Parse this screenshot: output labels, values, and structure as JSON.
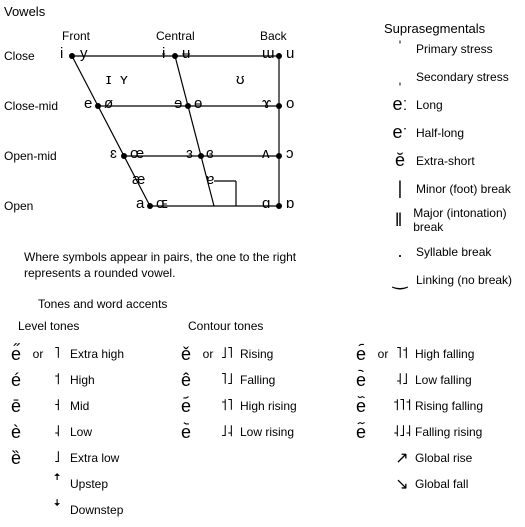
{
  "headings": {
    "vowels": "Vowels",
    "supra": "Suprasegmentals",
    "tones": "Tones and word accents",
    "level": "Level tones",
    "contour": "Contour tones"
  },
  "vowel_axis_cols": {
    "front": "Front",
    "central": "Central",
    "back": "Back"
  },
  "vowel_axis_rows": {
    "close": "Close",
    "closemid": "Close-mid",
    "openmid": "Open-mid",
    "open": "Open"
  },
  "caption1": "Where symbols appear in pairs, the one to the right",
  "caption2": "represents a rounded vowel.",
  "vowels": {
    "i": "i",
    "y": "y",
    "ibar": "ɨ",
    "ubar": "ʉ",
    "mtur": "ɯ",
    "u": "u",
    "smI": "ɪ",
    "smY": "ʏ",
    "smU": "ʊ",
    "e": "e",
    "oslash": "ø",
    "ebar": "ɘ",
    "obar": "ɵ",
    "ram": "ɤ",
    "o": "o",
    "eps": "ɛ",
    "oe": "œ",
    "revE": "ɜ",
    "ceps": "ɞ",
    "vturn": "ʌ",
    "oopen": "ɔ",
    "ae": "æ",
    "aturn": "ɐ",
    "a": "a",
    "OE": "ɶ",
    "alpha": "ɑ",
    "alphar": "ɒ"
  },
  "supra_items": [
    {
      "sym": "ˈ",
      "desc": "Primary stress"
    },
    {
      "sym": "ˌ",
      "desc": "Secondary stress"
    },
    {
      "sym": "eː",
      "desc": "Long"
    },
    {
      "sym": "eˑ",
      "desc": "Half-long"
    },
    {
      "sym": "ĕ",
      "desc": "Extra-short"
    },
    {
      "sym": "|",
      "desc": "Minor (foot) break"
    },
    {
      "sym": "‖",
      "desc": "Major (intonation) break"
    },
    {
      "sym": ".",
      "desc": "Syllable break"
    },
    {
      "sym": "‿",
      "desc": "Linking (no break)"
    }
  ],
  "level_tones": [
    {
      "s1": "e̋",
      "or": "or",
      "s2": "˥",
      "desc": "Extra high"
    },
    {
      "s1": "é",
      "or": "",
      "s2": "˦",
      "desc": "High"
    },
    {
      "s1": "ē",
      "or": "",
      "s2": "˧",
      "desc": "Mid"
    },
    {
      "s1": "è",
      "or": "",
      "s2": "˨",
      "desc": "Low"
    },
    {
      "s1": "ȅ",
      "or": "",
      "s2": "˩",
      "desc": "Extra low"
    },
    {
      "s1": "",
      "or": "",
      "s2": "ꜛ",
      "desc": "Upstep"
    },
    {
      "s1": "",
      "or": "",
      "s2": "ꜜ",
      "desc": "Downstep"
    }
  ],
  "contour_tones_a": [
    {
      "s1": "ě",
      "or": "or",
      "s2": "˩˥",
      "desc": "Rising"
    },
    {
      "s1": "ê",
      "or": "",
      "s2": "˥˩",
      "desc": "Falling"
    },
    {
      "s1": "e᷄",
      "or": "",
      "s2": "˦˥",
      "desc": "High rising"
    },
    {
      "s1": "e᷅",
      "or": "",
      "s2": "˩˨",
      "desc": "Low rising"
    }
  ],
  "contour_tones_b": [
    {
      "s1": "e᷇",
      "or": "or",
      "s2": "˥˦",
      "desc": "High falling"
    },
    {
      "s1": "e᷆",
      "or": "",
      "s2": "˨˩",
      "desc": "Low falling"
    },
    {
      "s1": "e᷈",
      "or": "",
      "s2": "˦˥˦",
      "desc": "Rising falling"
    },
    {
      "s1": "e᷉",
      "or": "",
      "s2": "˨˩˨",
      "desc": "Falling rising"
    },
    {
      "s1": "",
      "or": "",
      "s2": "↗",
      "desc": "Global rise"
    },
    {
      "s1": "",
      "or": "",
      "s2": "↘",
      "desc": "Global fall"
    }
  ],
  "style": {
    "line_color": "#000000",
    "dot_radius": 3,
    "background": "#ffffff"
  }
}
